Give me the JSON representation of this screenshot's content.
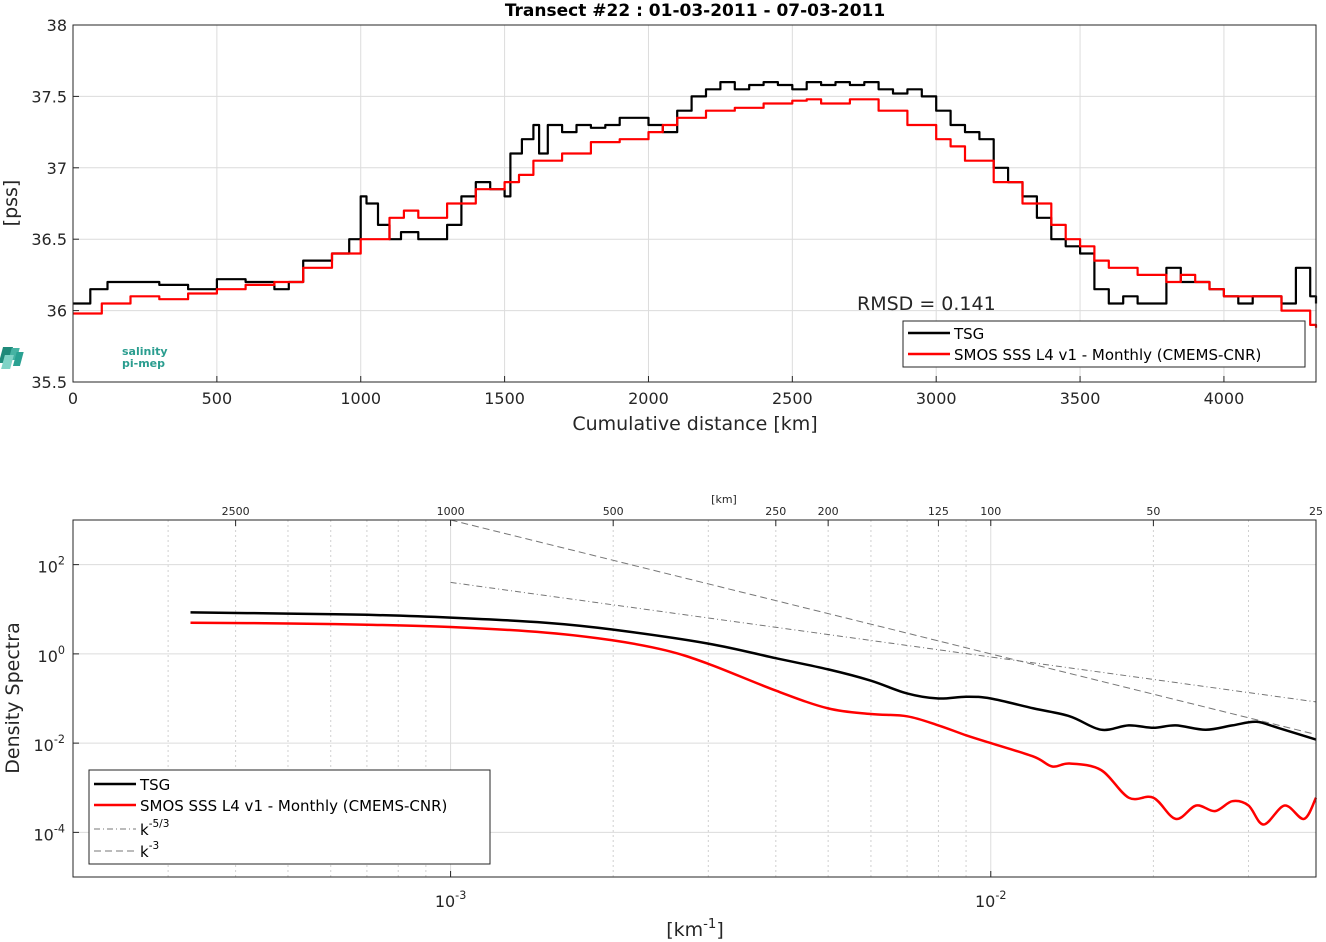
{
  "chart_data": [
    {
      "type": "line",
      "title": "Transect #22 : 01-03-2011 - 07-03-2011",
      "xlabel": "Cumulative distance [km]",
      "ylabel": "[pss]",
      "xlim": [
        0,
        4320
      ],
      "ylim": [
        35.5,
        38
      ],
      "xticks": [
        "0",
        "500",
        "1000",
        "1500",
        "2000",
        "2500",
        "3000",
        "3500",
        "4000"
      ],
      "yticks": [
        "35.5",
        "36",
        "36.5",
        "37",
        "37.5",
        "38"
      ],
      "grid": true,
      "legend_position": "bottom-right",
      "annotation": "RMSD = 0.141",
      "logo": {
        "line1": "salinity",
        "line2": "pi-mep"
      },
      "series": [
        {
          "name": "TSG",
          "color": "#000000",
          "x": [
            0,
            60,
            120,
            200,
            300,
            400,
            500,
            600,
            700,
            750,
            800,
            900,
            960,
            1000,
            1020,
            1060,
            1100,
            1140,
            1200,
            1250,
            1300,
            1350,
            1400,
            1450,
            1500,
            1520,
            1560,
            1600,
            1620,
            1650,
            1700,
            1750,
            1800,
            1850,
            1900,
            1950,
            2000,
            2050,
            2100,
            2150,
            2200,
            2250,
            2300,
            2350,
            2400,
            2450,
            2500,
            2550,
            2600,
            2650,
            2700,
            2750,
            2800,
            2850,
            2900,
            2950,
            3000,
            3050,
            3100,
            3150,
            3200,
            3250,
            3300,
            3350,
            3400,
            3450,
            3500,
            3550,
            3600,
            3650,
            3700,
            3750,
            3800,
            3850,
            3900,
            3950,
            4000,
            4050,
            4100,
            4150,
            4200,
            4250,
            4300,
            4320
          ],
          "y": [
            36.05,
            36.15,
            36.2,
            36.2,
            36.18,
            36.15,
            36.22,
            36.2,
            36.15,
            36.2,
            36.35,
            36.4,
            36.5,
            36.8,
            36.75,
            36.6,
            36.5,
            36.55,
            36.5,
            36.5,
            36.6,
            36.8,
            36.9,
            36.85,
            36.8,
            37.1,
            37.2,
            37.3,
            37.1,
            37.3,
            37.25,
            37.3,
            37.28,
            37.3,
            37.35,
            37.35,
            37.3,
            37.25,
            37.4,
            37.5,
            37.55,
            37.6,
            37.55,
            37.58,
            37.6,
            37.58,
            37.55,
            37.6,
            37.58,
            37.6,
            37.58,
            37.6,
            37.55,
            37.52,
            37.55,
            37.5,
            37.4,
            37.3,
            37.25,
            37.2,
            37.0,
            36.9,
            36.8,
            36.65,
            36.5,
            36.45,
            36.4,
            36.15,
            36.05,
            36.1,
            36.05,
            36.05,
            36.3,
            36.2,
            36.2,
            36.15,
            36.1,
            36.05,
            36.1,
            36.1,
            36.05,
            36.3,
            36.1,
            36.05
          ]
        },
        {
          "name": "SMOS SSS L4 v1 - Monthly (CMEMS-CNR)",
          "color": "#ff0000",
          "x": [
            0,
            100,
            200,
            300,
            400,
            500,
            600,
            700,
            800,
            900,
            1000,
            1100,
            1150,
            1200,
            1300,
            1400,
            1500,
            1550,
            1600,
            1650,
            1700,
            1800,
            1900,
            2000,
            2050,
            2100,
            2200,
            2300,
            2400,
            2500,
            2550,
            2600,
            2650,
            2700,
            2800,
            2900,
            3000,
            3050,
            3100,
            3200,
            3300,
            3400,
            3450,
            3500,
            3550,
            3600,
            3700,
            3800,
            3850,
            3900,
            3950,
            4000,
            4100,
            4200,
            4300,
            4320
          ],
          "y": [
            35.98,
            36.05,
            36.1,
            36.08,
            36.12,
            36.15,
            36.18,
            36.2,
            36.3,
            36.4,
            36.5,
            36.65,
            36.7,
            36.65,
            36.75,
            36.85,
            36.9,
            36.95,
            37.05,
            37.05,
            37.1,
            37.18,
            37.2,
            37.25,
            37.3,
            37.35,
            37.4,
            37.42,
            37.45,
            37.47,
            37.48,
            37.45,
            37.45,
            37.48,
            37.4,
            37.3,
            37.2,
            37.15,
            37.05,
            36.9,
            36.75,
            36.6,
            36.5,
            36.45,
            36.35,
            36.3,
            36.25,
            36.2,
            36.25,
            36.2,
            36.15,
            36.1,
            36.1,
            36.0,
            35.9,
            35.88
          ]
        }
      ]
    },
    {
      "type": "line",
      "xlabel": "[km-1]",
      "ylabel": "Density Spectra",
      "xscale": "log",
      "yscale": "log",
      "xlim": [
        0.0002,
        0.04
      ],
      "ylim": [
        1e-05,
        1000
      ],
      "xticks": [
        "10-3",
        "10-2"
      ],
      "yticks": [
        "10-4",
        "10-2",
        "100",
        "102"
      ],
      "top_axis": {
        "label": "[km]",
        "ticks": [
          "2500",
          "1000",
          "500",
          "250",
          "200",
          "125",
          "100",
          "50",
          "25"
        ]
      },
      "grid": true,
      "legend_position": "bottom-left",
      "series": [
        {
          "name": "TSG",
          "color": "#000000",
          "x": [
            0.00033,
            0.0005,
            0.0007,
            0.001,
            0.0015,
            0.002,
            0.003,
            0.004,
            0.005,
            0.006,
            0.007,
            0.008,
            0.009,
            0.01,
            0.012,
            0.014,
            0.016,
            0.018,
            0.02,
            0.022,
            0.025,
            0.028,
            0.031,
            0.034,
            0.04
          ],
          "y": [
            8.5,
            8.0,
            7.5,
            6.5,
            5.0,
            3.5,
            1.7,
            0.8,
            0.45,
            0.25,
            0.13,
            0.1,
            0.11,
            0.1,
            0.06,
            0.04,
            0.02,
            0.025,
            0.022,
            0.025,
            0.02,
            0.025,
            0.03,
            0.022,
            0.012
          ]
        },
        {
          "name": "SMOS SSS L4 v1 - Monthly (CMEMS-CNR)",
          "color": "#ff0000",
          "x": [
            0.00033,
            0.0005,
            0.0007,
            0.001,
            0.0015,
            0.002,
            0.0025,
            0.003,
            0.004,
            0.005,
            0.006,
            0.007,
            0.008,
            0.009,
            0.01,
            0.012,
            0.013,
            0.014,
            0.016,
            0.018,
            0.02,
            0.022,
            0.024,
            0.026,
            0.028,
            0.03,
            0.032,
            0.035,
            0.038,
            0.04
          ],
          "y": [
            5.0,
            4.8,
            4.5,
            4.0,
            3.0,
            2.0,
            1.2,
            0.6,
            0.15,
            0.06,
            0.045,
            0.04,
            0.025,
            0.015,
            0.01,
            0.005,
            0.003,
            0.0035,
            0.0025,
            0.0006,
            0.0006,
            0.0002,
            0.0004,
            0.0003,
            0.0005,
            0.0004,
            0.00015,
            0.0004,
            0.0002,
            0.0006
          ]
        },
        {
          "name": "k-5/3",
          "color": "#777777",
          "x": [
            0.001,
            0.04
          ],
          "y": [
            40,
            0.084
          ]
        },
        {
          "name": "k-3",
          "color": "#777777",
          "x": [
            0.001,
            0.04
          ],
          "y": [
            1000,
            0.0156
          ]
        }
      ]
    }
  ]
}
